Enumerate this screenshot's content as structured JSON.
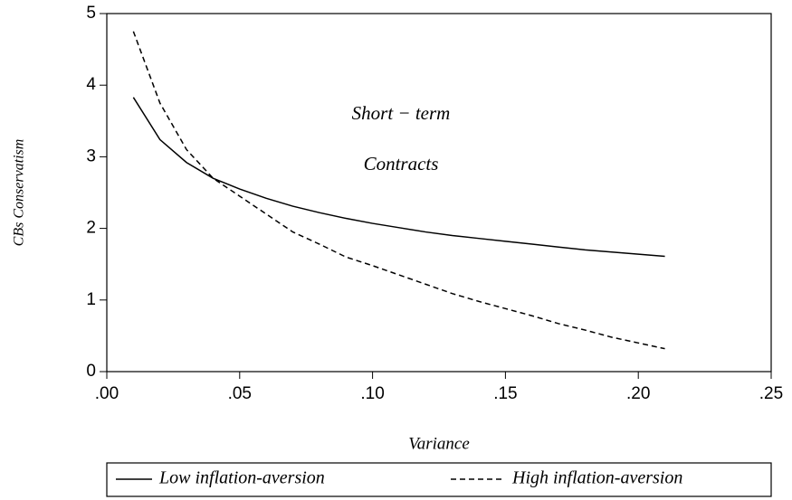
{
  "chart_data": {
    "type": "line",
    "annotations": [
      "Short − term",
      "Contracts"
    ],
    "xlabel": "Variance",
    "ylabel": "CBs Conservatism",
    "x": [
      0.01,
      0.02,
      0.03,
      0.04,
      0.05,
      0.06,
      0.07,
      0.08,
      0.09,
      0.1,
      0.11,
      0.12,
      0.13,
      0.14,
      0.15,
      0.16,
      0.17,
      0.18,
      0.19,
      0.2,
      0.21
    ],
    "series": [
      {
        "name": "Low inflation-aversion",
        "color": "#000000",
        "style": "solid",
        "values": [
          3.83,
          3.24,
          2.92,
          2.7,
          2.55,
          2.42,
          2.31,
          2.22,
          2.14,
          2.07,
          2.01,
          1.95,
          1.9,
          1.86,
          1.82,
          1.78,
          1.74,
          1.7,
          1.67,
          1.64,
          1.61
        ]
      },
      {
        "name": "High inflation-aversion",
        "color": "#000000",
        "style": "dashed",
        "values": [
          4.75,
          3.75,
          3.1,
          2.7,
          2.45,
          2.2,
          1.95,
          1.78,
          1.6,
          1.48,
          1.35,
          1.22,
          1.09,
          0.98,
          0.88,
          0.78,
          0.67,
          0.58,
          0.48,
          0.4,
          0.32
        ]
      }
    ],
    "xlim": [
      0,
      0.25
    ],
    "xticks": [
      {
        "value": 0,
        "label": ".00"
      },
      {
        "value": 0.05,
        "label": ".05"
      },
      {
        "value": 0.1,
        "label": ".10"
      },
      {
        "value": 0.15,
        "label": ".15"
      },
      {
        "value": 0.2,
        "label": ".20"
      },
      {
        "value": 0.25,
        "label": ".25"
      }
    ],
    "ylim": [
      0,
      5
    ],
    "yticks": [
      0,
      1,
      2,
      3,
      4,
      5
    ],
    "grid": false,
    "legend": "bottom"
  }
}
